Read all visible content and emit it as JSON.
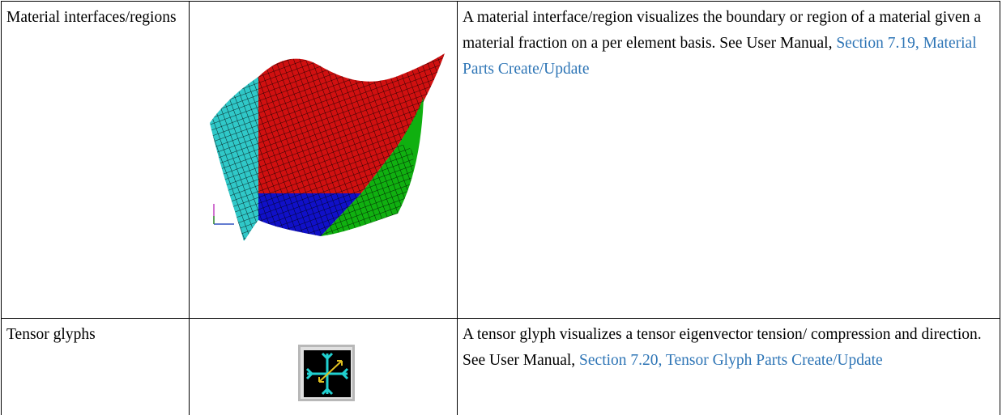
{
  "table": {
    "rows": [
      {
        "label": "Material interfaces/regions",
        "description": "A material interface/region visualizes the boundary or region of a material given a material fraction on a per element basis. See User Manual, ",
        "link": "Section 7.19, Material Parts Create/Update"
      },
      {
        "label": "Tensor glyphs",
        "description": "A tensor glyph visualizes a tensor eigenvector tension/ compression and direction. See User Manual, ",
        "link": "Section 7.20, Tensor Glyph Parts Create/Update"
      }
    ]
  }
}
